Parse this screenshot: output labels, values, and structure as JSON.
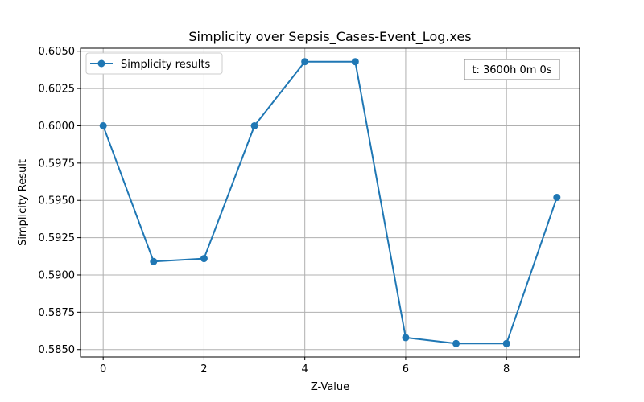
{
  "chart_data": {
    "type": "line",
    "title": "Simplicity over Sepsis_Cases-Event_Log.xes",
    "xlabel": "Z-Value",
    "ylabel": "Simplicity Result",
    "x": [
      0,
      1,
      2,
      3,
      4,
      5,
      6,
      7,
      8,
      9
    ],
    "series": [
      {
        "name": "Simplicity results",
        "values": [
          0.6,
          0.5909,
          0.5911,
          0.6,
          0.6043,
          0.6043,
          0.5858,
          0.5854,
          0.5854,
          0.5952
        ],
        "color": "#1f77b4"
      }
    ],
    "xlim": [
      -0.45,
      9.45
    ],
    "ylim": [
      0.5845,
      0.6052
    ],
    "xticks": [
      0,
      2,
      4,
      6,
      8
    ],
    "xtick_labels": [
      "0",
      "2",
      "4",
      "6",
      "8"
    ],
    "yticks": [
      0.585,
      0.5875,
      0.59,
      0.5925,
      0.595,
      0.5975,
      0.6,
      0.6025,
      0.605
    ],
    "ytick_labels": [
      "0.5850",
      "0.5875",
      "0.5900",
      "0.5925",
      "0.5950",
      "0.5975",
      "0.6000",
      "0.6025",
      "0.6050"
    ],
    "grid": true,
    "legend": "upper-left",
    "annotation": "t: 3600h 0m 0s"
  }
}
